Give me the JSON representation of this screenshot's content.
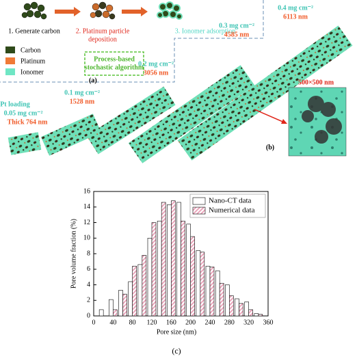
{
  "figure": {
    "steps": [
      "1. Generate carbon",
      "2. Platinum particle",
      "deposition",
      "3. Ionomer adsorption"
    ],
    "legend": [
      "Carbon",
      "Platinum",
      "Ionomer"
    ],
    "algorithm": [
      "Process-based",
      "stochastic algorithm"
    ],
    "panel_a": "(a)",
    "panel_b": "(b)",
    "panel_c": "(c)",
    "inset_size": "500×500 nm",
    "samples": [
      {
        "loading": [
          "Pt loading",
          "0.05 mg cm⁻²"
        ],
        "thickness": "Thick 764 nm"
      },
      {
        "loading": [
          "0.1 mg cm⁻²"
        ],
        "thickness": "1528 nm"
      },
      {
        "loading": [
          "0.2 mg cm⁻²"
        ],
        "thickness": "3056 nm"
      },
      {
        "loading": [
          "0.3 mg cm⁻²"
        ],
        "thickness": "4585 nm"
      },
      {
        "loading": [
          "0.4 mg cm⁻²"
        ],
        "thickness": "6113 nm"
      }
    ]
  },
  "chart_data": {
    "type": "bar",
    "x_label": "Pore size (nm)",
    "y_label": "Pore volume fraction (%)",
    "x": [
      20,
      40,
      60,
      80,
      100,
      120,
      140,
      160,
      180,
      200,
      220,
      240,
      260,
      280,
      300,
      320,
      340
    ],
    "series": [
      {
        "name": "Nano-CT data",
        "color": "#ffffff",
        "values": [
          0.8,
          2.1,
          3.3,
          4.4,
          6.6,
          10.0,
          12.2,
          14.3,
          14.6,
          11.8,
          8.4,
          6.4,
          5.8,
          4.0,
          2.2,
          1.8,
          0.3
        ]
      },
      {
        "name": "Numerical data",
        "color": "#eaa5bb",
        "hatch": true,
        "values": [
          0.0,
          0.8,
          2.8,
          6.4,
          7.8,
          12.0,
          14.6,
          14.8,
          12.2,
          10.2,
          8.2,
          6.3,
          4.2,
          2.6,
          1.6,
          0.8,
          0.2
        ]
      }
    ],
    "xlim": [
      0,
      360
    ],
    "xticks": [
      0,
      40,
      80,
      120,
      160,
      200,
      240,
      280,
      320,
      360
    ],
    "ylim": [
      0,
      16
    ],
    "yticks": [
      0,
      2,
      4,
      6,
      8,
      10,
      12,
      14,
      16
    ],
    "legend_position": "upper right"
  }
}
